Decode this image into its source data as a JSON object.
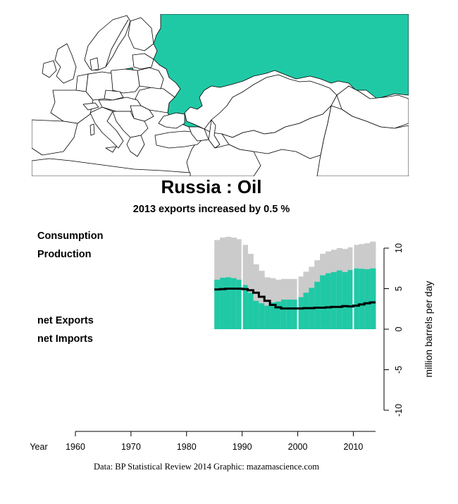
{
  "map": {
    "highlight_country": "Russia",
    "colors": {
      "highlight": "#20c9a6",
      "land": "#ffffff",
      "border": "#000000"
    }
  },
  "chart_data": {
    "type": "area",
    "title": "Russia :  Oil",
    "subtitle": "2013 exports increased by 0.5 %",
    "legend": [
      {
        "label": "Consumption",
        "color": "#000000"
      },
      {
        "label": "Production",
        "color": "#a6a6a6"
      },
      {
        "label": "net Exports",
        "color": "#0f8a5b"
      },
      {
        "label": "net Imports",
        "color": "#d62222"
      }
    ],
    "xlabel": "Year",
    "ylabel": "million barrels per day",
    "x": [
      1985,
      1986,
      1987,
      1988,
      1989,
      1990,
      1991,
      1992,
      1993,
      1994,
      1995,
      1996,
      1997,
      1998,
      1999,
      2000,
      2001,
      2002,
      2003,
      2004,
      2005,
      2006,
      2007,
      2008,
      2009,
      2010,
      2011,
      2012,
      2013
    ],
    "series": [
      {
        "name": "Production",
        "values": [
          11.0,
          11.3,
          11.4,
          11.3,
          11.1,
          10.4,
          9.3,
          8.0,
          7.2,
          6.4,
          6.3,
          6.1,
          6.2,
          6.2,
          6.2,
          6.5,
          7.1,
          7.7,
          8.5,
          9.3,
          9.6,
          9.8,
          10.0,
          9.9,
          10.1,
          10.4,
          10.5,
          10.6,
          10.8
        ]
      },
      {
        "name": "Consumption",
        "values": [
          4.9,
          4.95,
          5.0,
          5.0,
          5.0,
          4.95,
          4.8,
          4.5,
          4.0,
          3.5,
          3.0,
          2.7,
          2.55,
          2.55,
          2.55,
          2.55,
          2.6,
          2.6,
          2.65,
          2.65,
          2.7,
          2.75,
          2.75,
          2.85,
          2.8,
          2.9,
          3.05,
          3.2,
          3.3
        ]
      }
    ],
    "xlim": [
      1960,
      2014
    ],
    "ylim": [
      -10,
      10
    ],
    "xticks": [
      1960,
      1970,
      1980,
      1990,
      2000,
      2010
    ],
    "yticks": [
      10,
      5,
      0,
      -5,
      -10
    ],
    "gridlines_x": [
      1990,
      2000,
      2010
    ],
    "colors": {
      "production": "#cbcbcb",
      "net_exports": "#20c9a6",
      "consumption": "#000000",
      "gridline": "#ffffff",
      "axis": "#000000"
    }
  },
  "credit": "Data: BP Statistical Review 2014    Graphic: mazamascience.com"
}
